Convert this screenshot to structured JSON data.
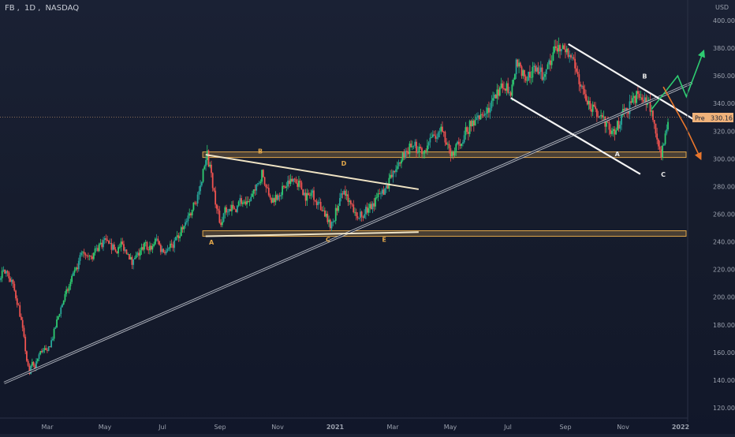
{
  "header": {
    "symbol": "FB",
    "interval": "1D",
    "exchange": "NASDAQ",
    "currency": "USD"
  },
  "price_tag": {
    "label": "Pre",
    "value": "330.16"
  },
  "chart_data": {
    "type": "candlestick",
    "title": "FB, 1D, NASDAQ",
    "ylim": [
      113,
      408
    ],
    "y_ticks": [
      120,
      140,
      160,
      180,
      200,
      220,
      240,
      260,
      280,
      300,
      320,
      340,
      360,
      380,
      400
    ],
    "y_tick_labels": [
      "120.00",
      "140.00",
      "160.00",
      "180.00",
      "200.00",
      "220.00",
      "240.00",
      "260.00",
      "280.00",
      "300.00",
      "320.00",
      "340.00",
      "360.00",
      "380.00",
      "400.00"
    ],
    "x_ticks": [
      {
        "label": "Mar",
        "month": 2
      },
      {
        "label": "May",
        "month": 4
      },
      {
        "label": "Jul",
        "month": 6
      },
      {
        "label": "Sep",
        "month": 8
      },
      {
        "label": "Nov",
        "month": 10
      },
      {
        "label": "2021",
        "month": 12
      },
      {
        "label": "Mar",
        "month": 14
      },
      {
        "label": "May",
        "month": 16
      },
      {
        "label": "Jul",
        "month": 18
      },
      {
        "label": "Sep",
        "month": 20
      },
      {
        "label": "Nov",
        "month": 22
      },
      {
        "label": "2022",
        "month": 24
      }
    ],
    "price_path": [
      [
        -0.9,
        222
      ],
      [
        -0.6,
        224
      ],
      [
        -0.3,
        221
      ],
      [
        0.0,
        218
      ],
      [
        0.2,
        213
      ],
      [
        0.4,
        216
      ],
      [
        0.55,
        219
      ],
      [
        0.7,
        214
      ],
      [
        0.85,
        205
      ],
      [
        1.0,
        193
      ],
      [
        1.1,
        182
      ],
      [
        1.2,
        168
      ],
      [
        1.3,
        152
      ],
      [
        1.38,
        144
      ],
      [
        1.45,
        152
      ],
      [
        1.55,
        148
      ],
      [
        1.7,
        158
      ],
      [
        1.85,
        163
      ],
      [
        2.0,
        160
      ],
      [
        2.2,
        172
      ],
      [
        2.4,
        188
      ],
      [
        2.6,
        200
      ],
      [
        2.8,
        210
      ],
      [
        3.0,
        220
      ],
      [
        3.2,
        232
      ],
      [
        3.4,
        233
      ],
      [
        3.6,
        230
      ],
      [
        3.8,
        238
      ],
      [
        4.0,
        240
      ],
      [
        4.2,
        236
      ],
      [
        4.4,
        234
      ],
      [
        4.6,
        238
      ],
      [
        4.8,
        232
      ],
      [
        4.95,
        224
      ],
      [
        5.05,
        228
      ],
      [
        5.2,
        232
      ],
      [
        5.4,
        238
      ],
      [
        5.6,
        236
      ],
      [
        5.8,
        242
      ],
      [
        6.0,
        232
      ],
      [
        6.2,
        238
      ],
      [
        6.4,
        238
      ],
      [
        6.6,
        246
      ],
      [
        6.8,
        252
      ],
      [
        7.0,
        262
      ],
      [
        7.2,
        272
      ],
      [
        7.35,
        280
      ],
      [
        7.45,
        296
      ],
      [
        7.55,
        304
      ],
      [
        7.65,
        292
      ],
      [
        7.75,
        282
      ],
      [
        7.85,
        266
      ],
      [
        7.95,
        258
      ],
      [
        8.05,
        252
      ],
      [
        8.15,
        262
      ],
      [
        8.3,
        266
      ],
      [
        8.5,
        262
      ],
      [
        8.7,
        270
      ],
      [
        8.9,
        265
      ],
      [
        9.1,
        272
      ],
      [
        9.3,
        280
      ],
      [
        9.45,
        290
      ],
      [
        9.6,
        278
      ],
      [
        9.8,
        270
      ],
      [
        10.0,
        274
      ],
      [
        10.2,
        278
      ],
      [
        10.4,
        283
      ],
      [
        10.6,
        286
      ],
      [
        10.8,
        280
      ],
      [
        11.0,
        272
      ],
      [
        11.2,
        276
      ],
      [
        11.4,
        268
      ],
      [
        11.6,
        262
      ],
      [
        11.8,
        252
      ],
      [
        11.95,
        256
      ],
      [
        12.1,
        268
      ],
      [
        12.3,
        276
      ],
      [
        12.5,
        268
      ],
      [
        12.7,
        262
      ],
      [
        12.9,
        258
      ],
      [
        13.1,
        264
      ],
      [
        13.3,
        268
      ],
      [
        13.5,
        272
      ],
      [
        13.7,
        278
      ],
      [
        13.9,
        284
      ],
      [
        14.1,
        292
      ],
      [
        14.3,
        300
      ],
      [
        14.5,
        306
      ],
      [
        14.7,
        310
      ],
      [
        14.9,
        306
      ],
      [
        15.1,
        302
      ],
      [
        15.3,
        312
      ],
      [
        15.5,
        318
      ],
      [
        15.7,
        320
      ],
      [
        15.9,
        308
      ],
      [
        16.1,
        302
      ],
      [
        16.3,
        312
      ],
      [
        16.5,
        318
      ],
      [
        16.7,
        324
      ],
      [
        16.9,
        328
      ],
      [
        17.1,
        332
      ],
      [
        17.3,
        336
      ],
      [
        17.5,
        342
      ],
      [
        17.7,
        348
      ],
      [
        17.9,
        354
      ],
      [
        18.1,
        350
      ],
      [
        18.2,
        360
      ],
      [
        18.3,
        372
      ],
      [
        18.4,
        366
      ],
      [
        18.6,
        358
      ],
      [
        18.8,
        362
      ],
      [
        19.0,
        366
      ],
      [
        19.2,
        360
      ],
      [
        19.4,
        368
      ],
      [
        19.6,
        376
      ],
      [
        19.8,
        382
      ],
      [
        20.0,
        378
      ],
      [
        20.2,
        372
      ],
      [
        20.4,
        362
      ],
      [
        20.6,
        348
      ],
      [
        20.8,
        340
      ],
      [
        21.0,
        334
      ],
      [
        21.2,
        330
      ],
      [
        21.4,
        326
      ],
      [
        21.6,
        318
      ],
      [
        21.8,
        324
      ],
      [
        22.0,
        332
      ],
      [
        22.2,
        336
      ],
      [
        22.4,
        344
      ],
      [
        22.6,
        348
      ],
      [
        22.8,
        342
      ],
      [
        23.0,
        336
      ],
      [
        23.1,
        326
      ],
      [
        23.2,
        310
      ],
      [
        23.3,
        302
      ],
      [
        23.45,
        318
      ],
      [
        23.6,
        330
      ]
    ],
    "lines": [
      {
        "name": "long-trendline",
        "from": [
          0.5,
          138
        ],
        "to": [
          24.4,
          355
        ],
        "style": "double-white"
      },
      {
        "name": "triangle-upper",
        "from": [
          7.5,
          303
        ],
        "to": [
          14.9,
          278
        ],
        "style": "beige"
      },
      {
        "name": "triangle-lower",
        "from": [
          7.5,
          244
        ],
        "to": [
          14.9,
          247
        ],
        "style": "beige"
      },
      {
        "name": "channel-upper",
        "from": [
          20.1,
          383
        ],
        "to": [
          24.5,
          328
        ],
        "style": "white"
      },
      {
        "name": "channel-lower",
        "from": [
          18.1,
          344
        ],
        "to": [
          22.6,
          289
        ],
        "style": "white"
      },
      {
        "name": "bullish-path",
        "points": [
          [
            23.0,
            336
          ],
          [
            23.9,
            360
          ],
          [
            24.2,
            345
          ],
          [
            24.8,
            378
          ]
        ],
        "style": "green-arrow"
      },
      {
        "name": "bearish-path",
        "points": [
          [
            23.4,
            352
          ],
          [
            24.2,
            322
          ],
          [
            24.7,
            300
          ]
        ],
        "style": "orange-arrow"
      }
    ],
    "zones": [
      {
        "name": "resistance-zone",
        "y": [
          301,
          305
        ],
        "x_from": 7.4
      },
      {
        "name": "support-zone",
        "y": [
          244,
          248
        ],
        "x_from": 7.4
      }
    ],
    "dotted_price_line": 330.16,
    "wave_labels": [
      {
        "text": "A",
        "at": [
          7.7,
          238
        ],
        "color": "#e0a64a"
      },
      {
        "text": "B",
        "at": [
          9.4,
          304
        ],
        "color": "#e0a64a"
      },
      {
        "text": "C",
        "at": [
          11.75,
          240
        ],
        "color": "#e0a64a"
      },
      {
        "text": "D",
        "at": [
          12.3,
          295
        ],
        "color": "#e0a64a"
      },
      {
        "text": "E",
        "at": [
          13.7,
          240
        ],
        "color": "#e0a64a"
      },
      {
        "text": "A",
        "at": [
          21.8,
          302
        ],
        "color": "#e8e8e8"
      },
      {
        "text": "B",
        "at": [
          22.75,
          358
        ],
        "color": "#e8e8e8"
      },
      {
        "text": "C",
        "at": [
          23.4,
          287
        ],
        "color": "#e8e8e8"
      }
    ],
    "colors": {
      "up": "#26a69a",
      "up_bright": "#2ecc71",
      "down": "#ef5350",
      "zone": "#e0a64a",
      "tag": "#f0b27a"
    }
  }
}
